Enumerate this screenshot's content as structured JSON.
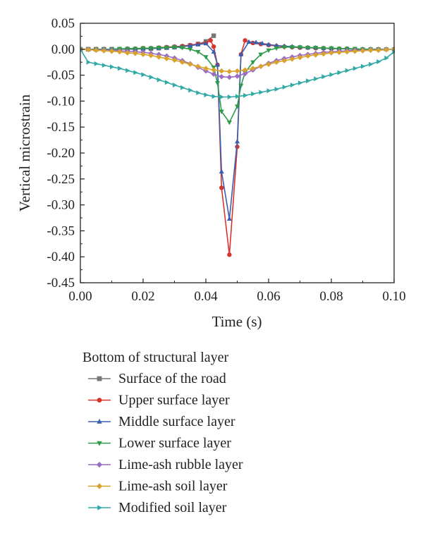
{
  "chart_data": {
    "type": "line",
    "xlabel": "Time (s)",
    "ylabel": "Vertical microstrain",
    "xlim": [
      0.0,
      0.1
    ],
    "ylim": [
      -0.45,
      0.05
    ],
    "x_ticks": [
      "0.00",
      "0.02",
      "0.04",
      "0.06",
      "0.08",
      "0.10"
    ],
    "y_ticks": [
      "0.05",
      "0.00",
      "-0.05",
      "-0.10",
      "-0.15",
      "-0.20",
      "-0.25",
      "-0.30",
      "-0.35",
      "-0.40",
      "-0.45"
    ],
    "grid": false,
    "legend": {
      "title": "Bottom of structural layer",
      "placement": "below"
    },
    "series": [
      {
        "name": "Surface of the road",
        "color": "#777777",
        "marker": "square",
        "points": [
          [
            0.0,
            0.0
          ],
          [
            0.0025,
            0.0
          ],
          [
            0.005,
            0.0
          ],
          [
            0.0075,
            0.0
          ],
          [
            0.01,
            0.0
          ],
          [
            0.0125,
            0.0
          ],
          [
            0.015,
            0.0
          ],
          [
            0.0175,
            0.0
          ],
          [
            0.02,
            0.001
          ],
          [
            0.0225,
            0.001
          ],
          [
            0.025,
            0.002
          ],
          [
            0.0275,
            0.003
          ],
          [
            0.03,
            0.004
          ],
          [
            0.0325,
            0.005
          ],
          [
            0.035,
            0.007
          ],
          [
            0.0375,
            0.01
          ],
          [
            0.04,
            0.015
          ],
          [
            0.0425,
            0.026
          ]
        ]
      },
      {
        "name": "Upper surface layer",
        "color": "#d8342b",
        "marker": "circle",
        "points": [
          [
            0.0,
            0.0
          ],
          [
            0.0025,
            0.0
          ],
          [
            0.005,
            0.0
          ],
          [
            0.0075,
            0.0
          ],
          [
            0.01,
            0.0
          ],
          [
            0.0125,
            0.0
          ],
          [
            0.015,
            0.001
          ],
          [
            0.0175,
            0.001
          ],
          [
            0.02,
            0.002
          ],
          [
            0.0225,
            0.002
          ],
          [
            0.025,
            0.003
          ],
          [
            0.0275,
            0.004
          ],
          [
            0.03,
            0.005
          ],
          [
            0.0325,
            0.006
          ],
          [
            0.035,
            0.008
          ],
          [
            0.0375,
            0.01
          ],
          [
            0.04,
            0.012
          ],
          [
            0.0415,
            0.017
          ],
          [
            0.0425,
            0.005
          ],
          [
            0.0437,
            -0.03
          ],
          [
            0.045,
            -0.267
          ],
          [
            0.0475,
            -0.396
          ],
          [
            0.05,
            -0.188
          ],
          [
            0.0512,
            -0.01
          ],
          [
            0.0525,
            0.017
          ],
          [
            0.055,
            0.012
          ],
          [
            0.0575,
            0.01
          ],
          [
            0.06,
            0.008
          ],
          [
            0.0625,
            0.006
          ],
          [
            0.065,
            0.005
          ],
          [
            0.0675,
            0.004
          ],
          [
            0.07,
            0.003
          ],
          [
            0.0725,
            0.003
          ],
          [
            0.075,
            0.002
          ],
          [
            0.0775,
            0.002
          ],
          [
            0.08,
            0.001
          ],
          [
            0.0825,
            0.001
          ],
          [
            0.085,
            0.001
          ],
          [
            0.0875,
            0.0
          ],
          [
            0.09,
            0.0
          ],
          [
            0.0925,
            0.0
          ],
          [
            0.095,
            0.0
          ],
          [
            0.0975,
            0.0
          ],
          [
            0.1,
            0.0
          ]
        ]
      },
      {
        "name": "Middle surface layer",
        "color": "#3a5fae",
        "marker": "triangle-up",
        "points": [
          [
            0.0,
            0.0
          ],
          [
            0.0025,
            0.0
          ],
          [
            0.005,
            0.0
          ],
          [
            0.0075,
            0.0
          ],
          [
            0.01,
            0.0
          ],
          [
            0.0125,
            0.0
          ],
          [
            0.015,
            0.001
          ],
          [
            0.0175,
            0.001
          ],
          [
            0.02,
            0.001
          ],
          [
            0.0225,
            0.002
          ],
          [
            0.025,
            0.002
          ],
          [
            0.0275,
            0.003
          ],
          [
            0.03,
            0.004
          ],
          [
            0.0325,
            0.005
          ],
          [
            0.035,
            0.007
          ],
          [
            0.0375,
            0.009
          ],
          [
            0.04,
            0.011
          ],
          [
            0.0425,
            -0.005
          ],
          [
            0.0437,
            -0.03
          ],
          [
            0.045,
            -0.236
          ],
          [
            0.0475,
            -0.327
          ],
          [
            0.05,
            -0.178
          ],
          [
            0.0512,
            -0.01
          ],
          [
            0.0537,
            0.014
          ],
          [
            0.056,
            0.013
          ],
          [
            0.058,
            0.011
          ],
          [
            0.06,
            0.009
          ],
          [
            0.0625,
            0.007
          ],
          [
            0.065,
            0.006
          ],
          [
            0.0675,
            0.005
          ],
          [
            0.07,
            0.004
          ],
          [
            0.0725,
            0.003
          ],
          [
            0.075,
            0.003
          ],
          [
            0.0775,
            0.002
          ],
          [
            0.08,
            0.002
          ],
          [
            0.0825,
            0.001
          ],
          [
            0.085,
            0.001
          ],
          [
            0.0875,
            0.0
          ],
          [
            0.09,
            0.0
          ],
          [
            0.0925,
            0.0
          ],
          [
            0.095,
            0.0
          ],
          [
            0.0975,
            0.0
          ],
          [
            0.1,
            0.0
          ]
        ]
      },
      {
        "name": "Lower surface layer",
        "color": "#2e9b4a",
        "marker": "triangle-down",
        "points": [
          [
            0.0,
            0.0
          ],
          [
            0.0025,
            0.0
          ],
          [
            0.005,
            0.0
          ],
          [
            0.0075,
            0.0
          ],
          [
            0.01,
            0.0
          ],
          [
            0.0125,
            0.001
          ],
          [
            0.015,
            0.001
          ],
          [
            0.0175,
            0.001
          ],
          [
            0.02,
            0.002
          ],
          [
            0.0225,
            0.002
          ],
          [
            0.025,
            0.003
          ],
          [
            0.0275,
            0.003
          ],
          [
            0.03,
            0.004
          ],
          [
            0.0325,
            0.003
          ],
          [
            0.035,
            0.0
          ],
          [
            0.0375,
            -0.005
          ],
          [
            0.04,
            -0.015
          ],
          [
            0.0425,
            -0.035
          ],
          [
            0.0437,
            -0.065
          ],
          [
            0.045,
            -0.12
          ],
          [
            0.0475,
            -0.141
          ],
          [
            0.05,
            -0.11
          ],
          [
            0.0512,
            -0.07
          ],
          [
            0.0525,
            -0.045
          ],
          [
            0.055,
            -0.025
          ],
          [
            0.0575,
            -0.01
          ],
          [
            0.06,
            -0.002
          ],
          [
            0.0625,
            0.002
          ],
          [
            0.065,
            0.004
          ],
          [
            0.0675,
            0.004
          ],
          [
            0.07,
            0.004
          ],
          [
            0.0725,
            0.003
          ],
          [
            0.075,
            0.003
          ],
          [
            0.0775,
            0.002
          ],
          [
            0.08,
            0.002
          ],
          [
            0.0825,
            0.001
          ],
          [
            0.085,
            0.001
          ],
          [
            0.0875,
            0.001
          ],
          [
            0.09,
            0.0
          ],
          [
            0.0925,
            0.0
          ],
          [
            0.095,
            0.0
          ],
          [
            0.0975,
            0.0
          ],
          [
            0.1,
            0.0
          ]
        ]
      },
      {
        "name": "Lime-ash rubble layer",
        "color": "#9b6cc4",
        "marker": "diamond",
        "points": [
          [
            0.0,
            0.0
          ],
          [
            0.0025,
            0.0
          ],
          [
            0.005,
            -0.001
          ],
          [
            0.0075,
            -0.001
          ],
          [
            0.01,
            -0.002
          ],
          [
            0.0125,
            -0.003
          ],
          [
            0.015,
            -0.004
          ],
          [
            0.0175,
            -0.005
          ],
          [
            0.02,
            -0.006
          ],
          [
            0.0225,
            -0.008
          ],
          [
            0.025,
            -0.01
          ],
          [
            0.0275,
            -0.013
          ],
          [
            0.03,
            -0.017
          ],
          [
            0.0325,
            -0.022
          ],
          [
            0.035,
            -0.028
          ],
          [
            0.0375,
            -0.035
          ],
          [
            0.04,
            -0.042
          ],
          [
            0.0425,
            -0.048
          ],
          [
            0.045,
            -0.053
          ],
          [
            0.0475,
            -0.054
          ],
          [
            0.05,
            -0.052
          ],
          [
            0.0525,
            -0.047
          ],
          [
            0.055,
            -0.04
          ],
          [
            0.0575,
            -0.033
          ],
          [
            0.06,
            -0.027
          ],
          [
            0.0625,
            -0.022
          ],
          [
            0.065,
            -0.018
          ],
          [
            0.0675,
            -0.015
          ],
          [
            0.07,
            -0.012
          ],
          [
            0.0725,
            -0.01
          ],
          [
            0.075,
            -0.008
          ],
          [
            0.0775,
            -0.006
          ],
          [
            0.08,
            -0.005
          ],
          [
            0.0825,
            -0.004
          ],
          [
            0.085,
            -0.003
          ],
          [
            0.0875,
            -0.002
          ],
          [
            0.09,
            -0.002
          ],
          [
            0.0925,
            -0.001
          ],
          [
            0.095,
            -0.001
          ],
          [
            0.0975,
            0.0
          ],
          [
            0.1,
            0.0
          ]
        ]
      },
      {
        "name": "Lime-ash soil layer",
        "color": "#d9a22a",
        "marker": "diamond-half",
        "points": [
          [
            0.0,
            0.0
          ],
          [
            0.0025,
            -0.001
          ],
          [
            0.005,
            -0.002
          ],
          [
            0.0075,
            -0.003
          ],
          [
            0.01,
            -0.004
          ],
          [
            0.0125,
            -0.005
          ],
          [
            0.015,
            -0.007
          ],
          [
            0.0175,
            -0.008
          ],
          [
            0.02,
            -0.01
          ],
          [
            0.0225,
            -0.012
          ],
          [
            0.025,
            -0.015
          ],
          [
            0.0275,
            -0.018
          ],
          [
            0.03,
            -0.021
          ],
          [
            0.0325,
            -0.025
          ],
          [
            0.035,
            -0.029
          ],
          [
            0.0375,
            -0.033
          ],
          [
            0.04,
            -0.037
          ],
          [
            0.0425,
            -0.04
          ],
          [
            0.045,
            -0.042
          ],
          [
            0.0475,
            -0.043
          ],
          [
            0.05,
            -0.042
          ],
          [
            0.0525,
            -0.04
          ],
          [
            0.055,
            -0.037
          ],
          [
            0.0575,
            -0.033
          ],
          [
            0.06,
            -0.029
          ],
          [
            0.0625,
            -0.025
          ],
          [
            0.065,
            -0.022
          ],
          [
            0.0675,
            -0.019
          ],
          [
            0.07,
            -0.016
          ],
          [
            0.0725,
            -0.013
          ],
          [
            0.075,
            -0.011
          ],
          [
            0.0775,
            -0.009
          ],
          [
            0.08,
            -0.007
          ],
          [
            0.0825,
            -0.006
          ],
          [
            0.085,
            -0.005
          ],
          [
            0.0875,
            -0.004
          ],
          [
            0.09,
            -0.003
          ],
          [
            0.0925,
            -0.002
          ],
          [
            0.095,
            -0.002
          ],
          [
            0.0975,
            -0.001
          ],
          [
            0.1,
            0.0
          ]
        ]
      },
      {
        "name": "Modified soil layer",
        "color": "#31aaa6",
        "marker": "triangle-right",
        "points": [
          [
            0.0,
            0.0
          ],
          [
            0.0025,
            -0.025
          ],
          [
            0.005,
            -0.028
          ],
          [
            0.0075,
            -0.031
          ],
          [
            0.01,
            -0.034
          ],
          [
            0.0125,
            -0.037
          ],
          [
            0.015,
            -0.041
          ],
          [
            0.0175,
            -0.045
          ],
          [
            0.02,
            -0.049
          ],
          [
            0.0225,
            -0.054
          ],
          [
            0.025,
            -0.059
          ],
          [
            0.0275,
            -0.064
          ],
          [
            0.03,
            -0.069
          ],
          [
            0.0325,
            -0.074
          ],
          [
            0.035,
            -0.079
          ],
          [
            0.0375,
            -0.084
          ],
          [
            0.04,
            -0.088
          ],
          [
            0.0425,
            -0.091
          ],
          [
            0.045,
            -0.092
          ],
          [
            0.0475,
            -0.092
          ],
          [
            0.05,
            -0.091
          ],
          [
            0.0525,
            -0.089
          ],
          [
            0.055,
            -0.086
          ],
          [
            0.0575,
            -0.083
          ],
          [
            0.06,
            -0.08
          ],
          [
            0.0625,
            -0.077
          ],
          [
            0.065,
            -0.073
          ],
          [
            0.0675,
            -0.069
          ],
          [
            0.07,
            -0.065
          ],
          [
            0.0725,
            -0.061
          ],
          [
            0.075,
            -0.057
          ],
          [
            0.0775,
            -0.053
          ],
          [
            0.08,
            -0.049
          ],
          [
            0.0825,
            -0.045
          ],
          [
            0.085,
            -0.041
          ],
          [
            0.0875,
            -0.037
          ],
          [
            0.09,
            -0.033
          ],
          [
            0.0925,
            -0.029
          ],
          [
            0.095,
            -0.024
          ],
          [
            0.0975,
            -0.017
          ],
          [
            0.1,
            -0.005
          ]
        ]
      }
    ]
  }
}
